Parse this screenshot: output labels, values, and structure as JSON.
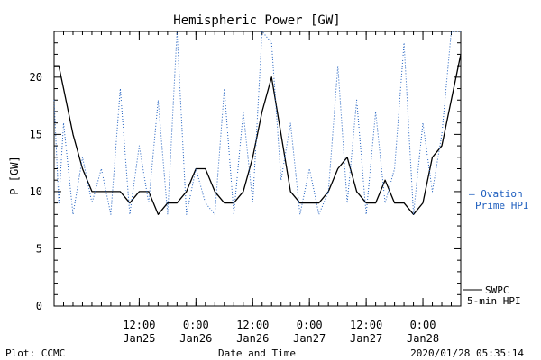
{
  "chart_data": {
    "type": "line",
    "title": "Hemispheric Power [GW]",
    "xlabel": "Date and Time",
    "ylabel": "P [GW]",
    "ylim": [
      0,
      24
    ],
    "yticks": [
      0,
      5,
      10,
      15,
      20
    ],
    "x_range": [
      "2020-01-24 18:00",
      "2020-01-28 08:00"
    ],
    "x_ticks": [
      {
        "t": "2020-01-25 12:00",
        "time": "12:00",
        "date": "Jan25"
      },
      {
        "t": "2020-01-26 00:00",
        "time": "0:00",
        "date": "Jan26"
      },
      {
        "t": "2020-01-26 12:00",
        "time": "12:00",
        "date": "Jan26"
      },
      {
        "t": "2020-01-27 00:00",
        "time": "0:00",
        "date": "Jan27"
      },
      {
        "t": "2020-01-27 12:00",
        "time": "12:00",
        "date": "Jan27"
      },
      {
        "t": "2020-01-28 00:00",
        "time": "0:00",
        "date": "Jan28"
      }
    ],
    "grid": false,
    "series": [
      {
        "name": "SWPC 5-min HPI",
        "color": "#000000",
        "style": "solid",
        "x": [
          "2020-01-24 18:00",
          "2020-01-24 19:00",
          "2020-01-24 20:00",
          "2020-01-24 22:00",
          "2020-01-25 00:00",
          "2020-01-25 02:00",
          "2020-01-25 04:00",
          "2020-01-25 06:00",
          "2020-01-25 08:00",
          "2020-01-25 10:00",
          "2020-01-25 12:00",
          "2020-01-25 14:00",
          "2020-01-25 16:00",
          "2020-01-25 18:00",
          "2020-01-25 20:00",
          "2020-01-25 22:00",
          "2020-01-26 00:00",
          "2020-01-26 02:00",
          "2020-01-26 04:00",
          "2020-01-26 06:00",
          "2020-01-26 08:00",
          "2020-01-26 10:00",
          "2020-01-26 12:00",
          "2020-01-26 14:00",
          "2020-01-26 16:00",
          "2020-01-26 18:00",
          "2020-01-26 20:00",
          "2020-01-26 22:00",
          "2020-01-27 00:00",
          "2020-01-27 02:00",
          "2020-01-27 04:00",
          "2020-01-27 06:00",
          "2020-01-27 08:00",
          "2020-01-27 10:00",
          "2020-01-27 12:00",
          "2020-01-27 14:00",
          "2020-01-27 16:00",
          "2020-01-27 18:00",
          "2020-01-27 20:00",
          "2020-01-27 22:00",
          "2020-01-28 00:00",
          "2020-01-28 02:00",
          "2020-01-28 04:00",
          "2020-01-28 06:00",
          "2020-01-28 08:00"
        ],
        "y": [
          21,
          21,
          19,
          15,
          12,
          10,
          10,
          10,
          10,
          9,
          10,
          10,
          8,
          9,
          9,
          10,
          12,
          12,
          10,
          9,
          9,
          10,
          13,
          17,
          20,
          15,
          10,
          9,
          9,
          9,
          10,
          12,
          13,
          10,
          9,
          9,
          11,
          9,
          9,
          8,
          9,
          13,
          14,
          18,
          22
        ]
      },
      {
        "name": "Ovation Prime HPI",
        "color": "#1f5fbf",
        "style": "dotted",
        "x": [
          "2020-01-24 18:00",
          "2020-01-24 19:00",
          "2020-01-24 20:00",
          "2020-01-24 22:00",
          "2020-01-25 00:00",
          "2020-01-25 02:00",
          "2020-01-25 04:00",
          "2020-01-25 06:00",
          "2020-01-25 08:00",
          "2020-01-25 10:00",
          "2020-01-25 12:00",
          "2020-01-25 14:00",
          "2020-01-25 16:00",
          "2020-01-25 18:00",
          "2020-01-25 20:00",
          "2020-01-25 22:00",
          "2020-01-26 00:00",
          "2020-01-26 02:00",
          "2020-01-26 04:00",
          "2020-01-26 06:00",
          "2020-01-26 08:00",
          "2020-01-26 10:00",
          "2020-01-26 12:00",
          "2020-01-26 14:00",
          "2020-01-26 16:00",
          "2020-01-26 18:00",
          "2020-01-26 20:00",
          "2020-01-26 22:00",
          "2020-01-27 00:00",
          "2020-01-27 02:00",
          "2020-01-27 04:00",
          "2020-01-27 06:00",
          "2020-01-27 08:00",
          "2020-01-27 10:00",
          "2020-01-27 12:00",
          "2020-01-27 14:00",
          "2020-01-27 16:00",
          "2020-01-27 18:00",
          "2020-01-27 20:00",
          "2020-01-27 22:00",
          "2020-01-28 00:00",
          "2020-01-28 02:00",
          "2020-01-28 04:00",
          "2020-01-28 06:00",
          "2020-01-28 08:00"
        ],
        "y": [
          18,
          9,
          16,
          8,
          13,
          9,
          12,
          8,
          19,
          8,
          14,
          9,
          18,
          8,
          24,
          8,
          12,
          9,
          8,
          19,
          8,
          17,
          9,
          24,
          23,
          11,
          16,
          8,
          12,
          8,
          10,
          21,
          9,
          18,
          8,
          17,
          9,
          12,
          23,
          8,
          16,
          10,
          15,
          24,
          24
        ]
      }
    ],
    "legend": [
      {
        "label_line1": "— Ovation",
        "label_line2": "Prime HPI",
        "color": "#1f5fbf"
      },
      {
        "label_line1": "SWPC",
        "label_line2": "5-min HPI",
        "color": "#000000"
      }
    ],
    "footer": {
      "left": "Plot: CCMC",
      "center": "Date and Time",
      "right": "2020/01/28 05:35:14"
    }
  }
}
